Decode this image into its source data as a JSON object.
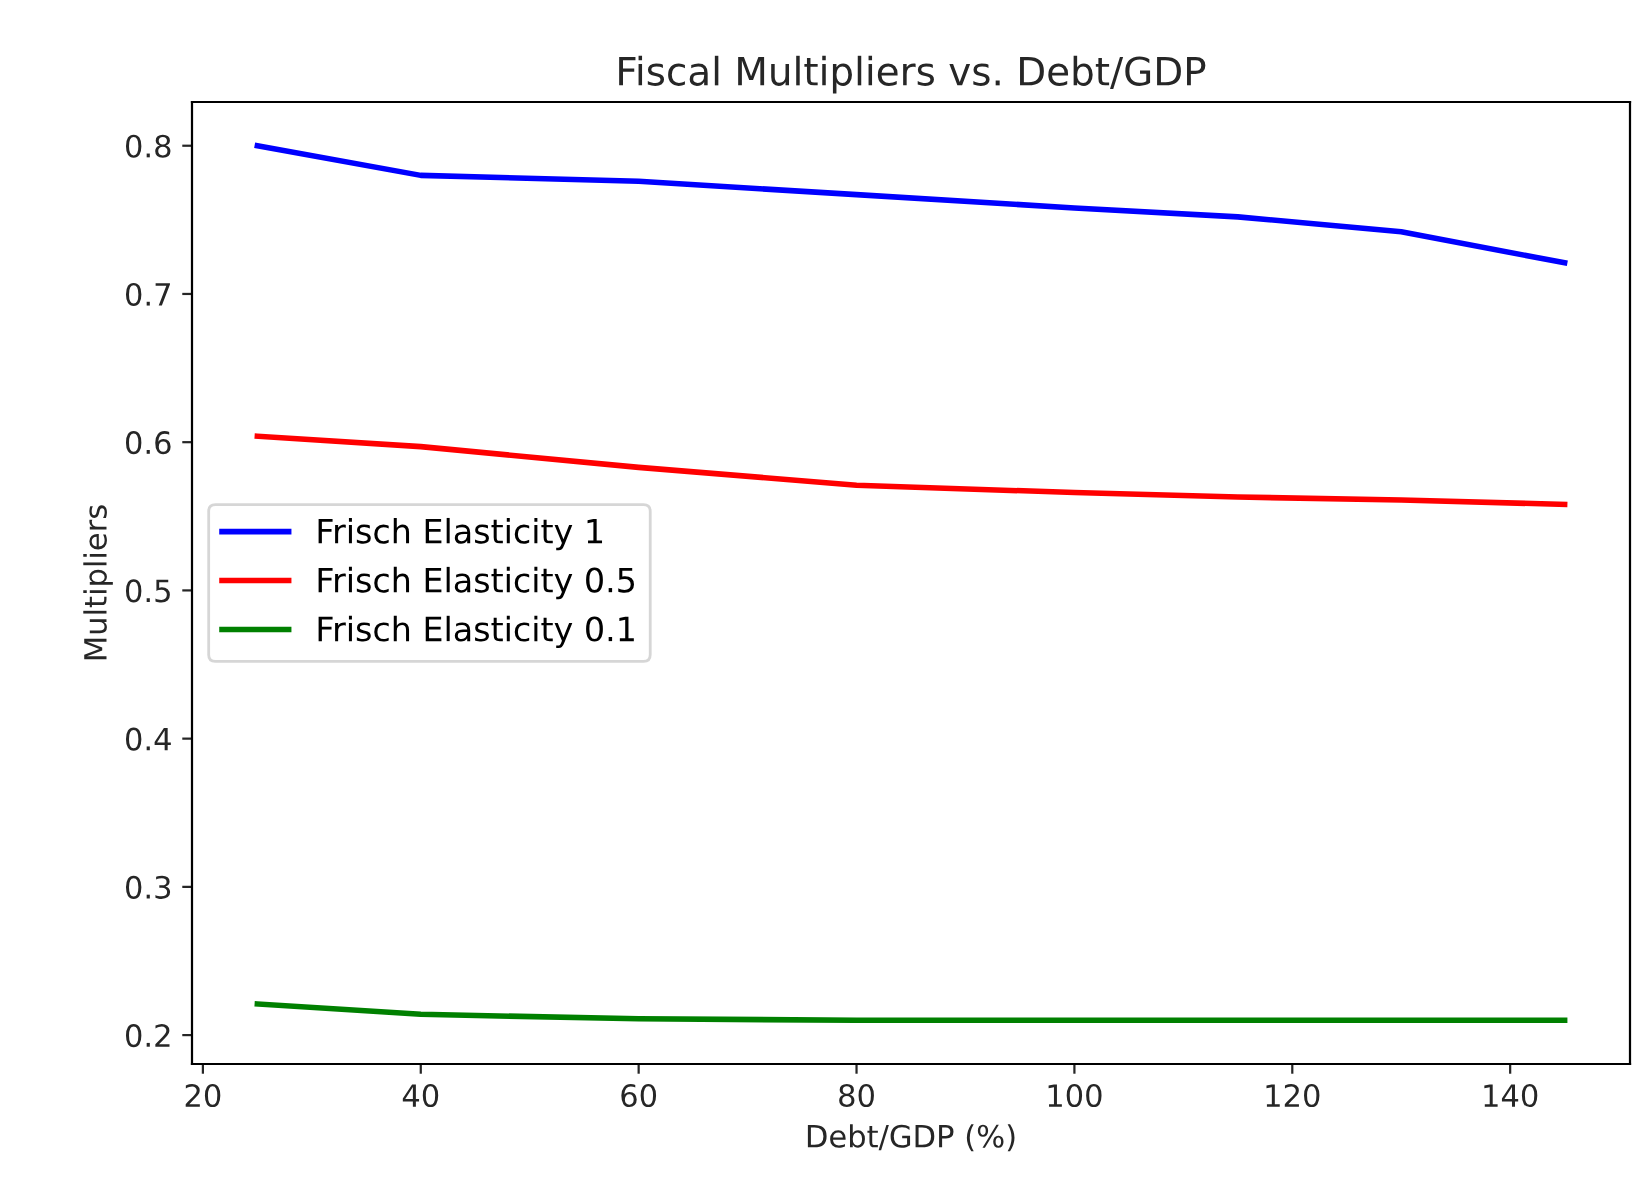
{
  "chart_data": {
    "type": "line",
    "title": "Fiscal Multipliers vs. Debt/GDP",
    "xlabel": "Debt/GDP (%)",
    "ylabel": "Multipliers",
    "x": [
      25,
      40,
      60,
      80,
      100,
      115,
      130,
      145
    ],
    "series": [
      {
        "name": "Frisch Elasticity 1",
        "color": "#0000ff",
        "values": [
          0.8,
          0.78,
          0.776,
          0.767,
          0.758,
          0.752,
          0.742,
          0.721
        ]
      },
      {
        "name": "Frisch Elasticity 0.5",
        "color": "#ff0000",
        "values": [
          0.604,
          0.597,
          0.583,
          0.571,
          0.566,
          0.563,
          0.561,
          0.558
        ]
      },
      {
        "name": "Frisch Elasticity 0.1",
        "color": "#008000",
        "values": [
          0.221,
          0.214,
          0.211,
          0.21,
          0.21,
          0.21,
          0.21,
          0.21
        ]
      }
    ],
    "xlim": [
      19,
      151
    ],
    "xticks": [
      20,
      40,
      60,
      80,
      100,
      120,
      140
    ],
    "ylim": [
      0.1805,
      0.8295
    ],
    "yticks": [
      0.2,
      0.3,
      0.4,
      0.5,
      0.6,
      0.7,
      0.8
    ],
    "legend": "center left",
    "grid": false
  }
}
